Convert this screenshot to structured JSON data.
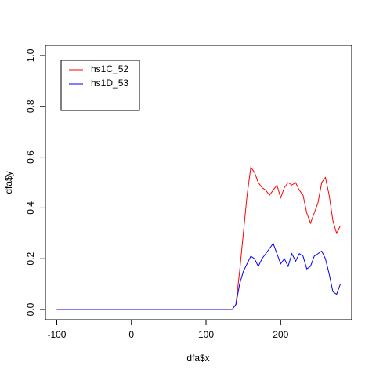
{
  "chart_data": {
    "type": "line",
    "x_label": "dfa$x",
    "y_label": "dfa$y",
    "x": [
      -100,
      135,
      140,
      145,
      150,
      155,
      160,
      165,
      170,
      175,
      180,
      185,
      190,
      195,
      200,
      205,
      210,
      215,
      220,
      225,
      230,
      235,
      240,
      245,
      250,
      255,
      260,
      265,
      270,
      275,
      280
    ],
    "series": [
      {
        "name": "hs1C_52",
        "color": "#ff0000",
        "values": [
          0,
          0,
          0.02,
          0.15,
          0.3,
          0.45,
          0.56,
          0.54,
          0.5,
          0.48,
          0.47,
          0.45,
          0.47,
          0.49,
          0.44,
          0.48,
          0.5,
          0.49,
          0.5,
          0.47,
          0.45,
          0.38,
          0.34,
          0.38,
          0.42,
          0.5,
          0.52,
          0.45,
          0.35,
          0.3,
          0.33
        ]
      },
      {
        "name": "hs1D_53",
        "color": "#0000ff",
        "values": [
          0,
          0,
          0.02,
          0.1,
          0.15,
          0.18,
          0.21,
          0.2,
          0.17,
          0.2,
          0.22,
          0.24,
          0.26,
          0.22,
          0.18,
          0.2,
          0.17,
          0.22,
          0.19,
          0.22,
          0.21,
          0.16,
          0.17,
          0.21,
          0.22,
          0.23,
          0.2,
          0.14,
          0.07,
          0.06,
          0.1
        ]
      }
    ],
    "xlim": [
      -115.2,
      295.2
    ],
    "ylim": [
      -0.04,
      1.04
    ],
    "xticks": [
      -100,
      0,
      100,
      200
    ],
    "yticks": [
      {
        "value": 0,
        "label": "0.0"
      },
      0.2,
      0.4,
      0.6,
      0.8,
      {
        "value": 1,
        "label": "1.0"
      }
    ],
    "legend": "top-left"
  }
}
